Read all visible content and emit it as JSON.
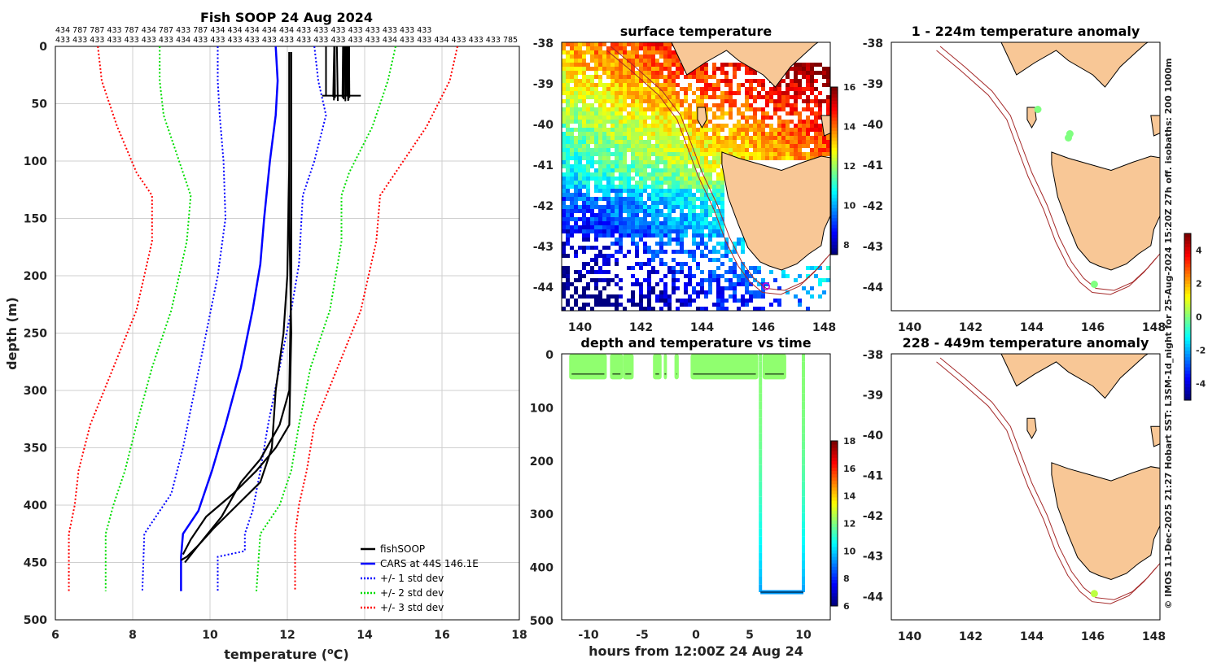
{
  "side_note": "© IMOS 11-Dec-2025 21:27 Hobart SST: L3SM-1d_night for 25-Aug-2024 15:20Z 27h off. isobaths: 200  1000m",
  "colors": {
    "black": "#000000",
    "cars": "#0000ff",
    "std1": "#0000ff",
    "std2": "#00dd00",
    "std3": "#ff0000",
    "land": "#f8c796",
    "iso": "#a52a2a",
    "fish_marker": "#00cc33"
  },
  "chart_data": [
    {
      "id": "profile",
      "type": "line",
      "title": "Fish SOOP 24 Aug 2024",
      "xlabel": "temperature (",
      "xlabel_sup": "o",
      "xlabel_end": "C)",
      "ylabel": "depth (m)",
      "xlim": [
        6,
        18
      ],
      "ylim": [
        500,
        0
      ],
      "xticks": [
        "6",
        "8",
        "10",
        "12",
        "14",
        "16",
        "18"
      ],
      "yticks": [
        "0",
        "50",
        "100",
        "150",
        "200",
        "250",
        "300",
        "350",
        "400",
        "450",
        "500"
      ],
      "top_labels_row1": "434 787 787 433 787 434 787 433 787 434 434 434 434 434 433 433 433 433 433 433 433 433",
      "top_labels_row2": "433 433 433 433 433 433 433 434 433 433 433 433 433 433 433 433 433 433 433 434 433 433 434 433 433 433 785",
      "legend": [
        "fishSOOP",
        "CARS at 44S 146.1E",
        "+/- 1 std dev",
        "+/- 2 std dev",
        "+/- 3 std dev"
      ],
      "series": [
        {
          "name": "CARS at 44S 146.1E",
          "style": "solid",
          "color": "#0000ff",
          "points": [
            [
              11.7,
              0
            ],
            [
              11.75,
              30
            ],
            [
              11.7,
              60
            ],
            [
              11.55,
              100
            ],
            [
              11.4,
              150
            ],
            [
              11.3,
              190
            ],
            [
              11.1,
              230
            ],
            [
              10.8,
              280
            ],
            [
              10.4,
              330
            ],
            [
              10.05,
              370
            ],
            [
              9.7,
              405
            ],
            [
              9.3,
              425
            ],
            [
              9.25,
              445
            ],
            [
              9.25,
              475
            ]
          ]
        },
        {
          "name": "+1 std",
          "style": "dotted",
          "color": "#0000ff",
          "points": [
            [
              12.7,
              0
            ],
            [
              12.8,
              30
            ],
            [
              13.0,
              60
            ],
            [
              12.7,
              100
            ],
            [
              12.4,
              130
            ],
            [
              12.3,
              190
            ],
            [
              12.1,
              230
            ],
            [
              11.8,
              280
            ],
            [
              11.5,
              330
            ],
            [
              11.3,
              370
            ],
            [
              11.1,
              405
            ],
            [
              10.9,
              425
            ],
            [
              10.9,
              440
            ],
            [
              10.2,
              445
            ],
            [
              10.2,
              475
            ]
          ]
        },
        {
          "name": "-1 std",
          "style": "dotted",
          "color": "#0000ff",
          "points": [
            [
              10.2,
              0
            ],
            [
              10.2,
              30
            ],
            [
              10.25,
              60
            ],
            [
              10.35,
              100
            ],
            [
              10.4,
              150
            ],
            [
              10.2,
              200
            ],
            [
              9.9,
              250
            ],
            [
              9.6,
              300
            ],
            [
              9.3,
              350
            ],
            [
              9.0,
              390
            ],
            [
              8.3,
              425
            ],
            [
              8.25,
              475
            ]
          ]
        },
        {
          "name": "+2 std",
          "style": "dotted",
          "color": "#00dd00",
          "points": [
            [
              14.8,
              0
            ],
            [
              14.6,
              30
            ],
            [
              14.2,
              70
            ],
            [
              13.6,
              110
            ],
            [
              13.4,
              130
            ],
            [
              13.4,
              170
            ],
            [
              13.1,
              230
            ],
            [
              12.6,
              280
            ],
            [
              12.3,
              330
            ],
            [
              12.1,
              370
            ],
            [
              11.8,
              400
            ],
            [
              11.3,
              425
            ],
            [
              11.2,
              475
            ]
          ]
        },
        {
          "name": "-2 std",
          "style": "dotted",
          "color": "#00dd00",
          "points": [
            [
              8.7,
              0
            ],
            [
              8.7,
              30
            ],
            [
              8.8,
              60
            ],
            [
              9.3,
              110
            ],
            [
              9.5,
              130
            ],
            [
              9.4,
              170
            ],
            [
              9.0,
              230
            ],
            [
              8.5,
              280
            ],
            [
              8.1,
              330
            ],
            [
              7.8,
              370
            ],
            [
              7.5,
              400
            ],
            [
              7.3,
              425
            ],
            [
              7.3,
              475
            ]
          ]
        },
        {
          "name": "+3 std",
          "style": "dotted",
          "color": "#ff0000",
          "points": [
            [
              16.4,
              0
            ],
            [
              16.2,
              30
            ],
            [
              15.6,
              70
            ],
            [
              14.8,
              110
            ],
            [
              14.4,
              130
            ],
            [
              14.3,
              170
            ],
            [
              13.9,
              230
            ],
            [
              13.3,
              280
            ],
            [
              12.7,
              330
            ],
            [
              12.5,
              370
            ],
            [
              12.3,
              400
            ],
            [
              12.2,
              425
            ],
            [
              12.2,
              475
            ]
          ]
        },
        {
          "name": "-3 std",
          "style": "dotted",
          "color": "#ff0000",
          "points": [
            [
              7.1,
              0
            ],
            [
              7.2,
              30
            ],
            [
              7.6,
              70
            ],
            [
              8.1,
              110
            ],
            [
              8.5,
              130
            ],
            [
              8.5,
              170
            ],
            [
              8.1,
              230
            ],
            [
              7.5,
              280
            ],
            [
              6.9,
              330
            ],
            [
              6.6,
              370
            ],
            [
              6.5,
              400
            ],
            [
              6.35,
              425
            ],
            [
              6.35,
              475
            ]
          ]
        },
        {
          "name": "fishSOOP",
          "style": "solid",
          "color": "#000000",
          "points": [
            [
              12.05,
              5
            ],
            [
              12.05,
              100
            ],
            [
              12.0,
              200
            ],
            [
              11.9,
              250
            ],
            [
              11.7,
              300
            ],
            [
              11.6,
              350
            ],
            [
              11.3,
              380
            ],
            [
              10.7,
              400
            ],
            [
              10.1,
              420
            ],
            [
              9.7,
              435
            ],
            [
              9.35,
              450
            ]
          ]
        },
        {
          "name": "fishSOOP b",
          "style": "solid",
          "color": "#000000",
          "points": [
            [
              12.05,
              5
            ],
            [
              12.05,
              150
            ],
            [
              12.1,
              250
            ],
            [
              12.05,
              330
            ],
            [
              11.7,
              350
            ],
            [
              11.2,
              370
            ],
            [
              10.6,
              390
            ],
            [
              9.9,
              410
            ],
            [
              9.5,
              430
            ],
            [
              9.3,
              443
            ]
          ]
        },
        {
          "name": "fishSOOP c",
          "style": "solid",
          "color": "#000000",
          "points": [
            [
              12.1,
              5
            ],
            [
              12.1,
              200
            ],
            [
              12.05,
              300
            ],
            [
              11.8,
              330
            ],
            [
              11.3,
              360
            ],
            [
              10.8,
              380
            ],
            [
              10.3,
              410
            ],
            [
              9.7,
              435
            ],
            [
              9.4,
              445
            ],
            [
              9.25,
              448
            ]
          ]
        }
      ],
      "surface_cluster": {
        "x_range": [
          13.2,
          13.6
        ],
        "depth_range": [
          0,
          48
        ],
        "base_x": [
          12.9,
          13.9
        ],
        "base_depth": 43
      }
    },
    {
      "id": "sst_map",
      "type": "heatmap",
      "title": "surface temperature",
      "xlim": [
        139.4,
        148.2
      ],
      "ylim": [
        -44.6,
        -38
      ],
      "xticks": [
        "140",
        "142",
        "144",
        "146",
        "148"
      ],
      "yticks": [
        "-38",
        "-39",
        "-40",
        "-41",
        "-42",
        "-43",
        "-44"
      ],
      "colorbar_ticks": [
        "8",
        "10",
        "12",
        "14",
        "16"
      ],
      "clim": [
        7.5,
        16
      ],
      "marker": [
        146.1,
        -44.0
      ]
    },
    {
      "id": "time_series",
      "type": "scatter",
      "title": "depth and temperature vs time",
      "xlabel": "hours from 12:00Z 24 Aug 24",
      "xlim": [
        -12.5,
        12.5
      ],
      "ylim": [
        500,
        0
      ],
      "xticks": [
        "-10",
        "-5",
        "0",
        "5",
        "10"
      ],
      "yticks": [
        "0",
        "100",
        "200",
        "300",
        "400",
        "500"
      ],
      "colorbar_ticks": [
        "6",
        "8",
        "10",
        "12",
        "14",
        "16",
        "18"
      ],
      "clim": [
        6,
        18
      ],
      "surface_segments": [
        [
          -11.8,
          -8.3
        ],
        [
          -8.0,
          -6.8
        ],
        [
          -6.8,
          -5.8
        ],
        [
          -4.0,
          -3.2
        ],
        [
          -3.0,
          -2.7
        ],
        [
          -2.0,
          -1.6
        ],
        [
          -0.5,
          5.8
        ],
        [
          6.2,
          8.4
        ]
      ],
      "deep_cast": {
        "down_time": 6.0,
        "up_time": 10.0,
        "bottom_depth": 448,
        "bottom_temp": 9.3,
        "surface_temp": 12.1
      }
    },
    {
      "id": "anom_shallow",
      "type": "scatter",
      "title": "1 - 224m temperature anomaly",
      "xlim": [
        139.4,
        148.2
      ],
      "ylim": [
        -44.6,
        -38
      ],
      "xticks": [
        "140",
        "142",
        "144",
        "146",
        "148"
      ],
      "yticks": [
        "-38",
        "-39",
        "-40",
        "-41",
        "-42",
        "-43",
        "-44"
      ],
      "points": [
        {
          "lon": 144.2,
          "lat": -39.65,
          "anom": 0
        },
        {
          "lon": 145.25,
          "lat": -40.25,
          "anom": 0
        },
        {
          "lon": 145.2,
          "lat": -40.35,
          "anom": 0
        },
        {
          "lon": 146.05,
          "lat": -43.95,
          "anom": 0
        }
      ]
    },
    {
      "id": "anom_deep",
      "type": "scatter",
      "title": "228 - 449m temperature anomaly",
      "xlim": [
        139.4,
        148.2
      ],
      "ylim": [
        -44.6,
        -38
      ],
      "xticks": [
        "140",
        "142",
        "144",
        "146",
        "148"
      ],
      "yticks": [
        "-38",
        "-39",
        "-40",
        "-41",
        "-42",
        "-43",
        "-44"
      ],
      "colorbar_ticks": [
        "-4",
        "-2",
        "0",
        "2",
        "4"
      ],
      "clim": [
        -5,
        5
      ],
      "points": [
        {
          "lon": 146.05,
          "lat": -43.95,
          "anom": 0.6
        }
      ]
    }
  ]
}
